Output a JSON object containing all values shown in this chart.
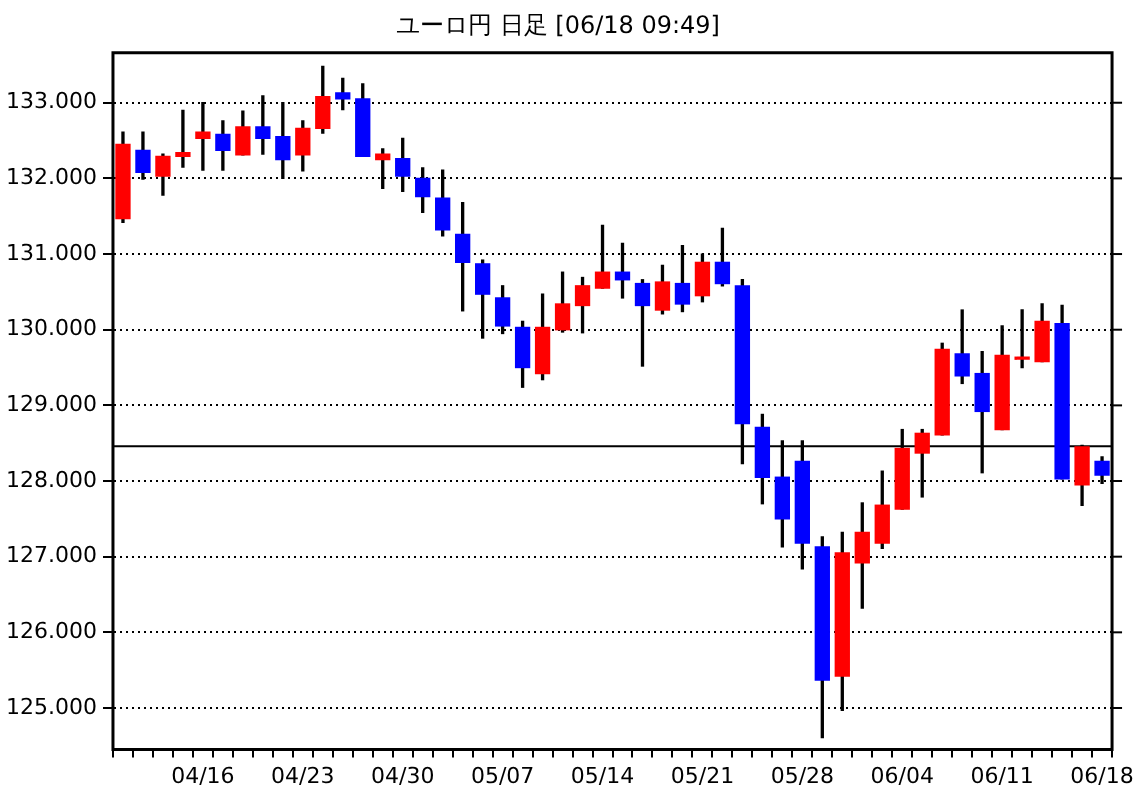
{
  "chart_data": {
    "type": "candlestick",
    "title": "ユーロ円 日足 [06/18 09:49]",
    "categories": [
      null,
      null,
      null,
      null,
      "04/16",
      null,
      null,
      null,
      null,
      "04/23",
      null,
      null,
      null,
      null,
      "04/30",
      null,
      null,
      null,
      null,
      "05/07",
      null,
      null,
      null,
      null,
      "05/14",
      null,
      null,
      null,
      null,
      "05/21",
      null,
      null,
      null,
      null,
      "05/28",
      null,
      null,
      null,
      null,
      "06/04",
      null,
      null,
      null,
      null,
      "06/11",
      null,
      null,
      null,
      null,
      "06/18"
    ],
    "ohlc": [
      [
        131.47,
        132.61,
        131.42,
        132.45
      ],
      [
        132.37,
        132.61,
        131.99,
        132.08
      ],
      [
        132.03,
        132.32,
        131.78,
        132.29
      ],
      [
        132.29,
        132.9,
        132.15,
        132.34
      ],
      [
        132.53,
        133.0,
        132.11,
        132.61
      ],
      [
        132.58,
        132.76,
        132.11,
        132.37
      ],
      [
        132.31,
        132.89,
        132.31,
        132.68
      ],
      [
        132.68,
        133.09,
        132.32,
        132.53
      ],
      [
        132.55,
        133.0,
        132.0,
        132.25
      ],
      [
        132.31,
        132.76,
        132.1,
        132.66
      ],
      [
        132.66,
        133.48,
        132.6,
        133.08
      ],
      [
        133.13,
        133.32,
        132.91,
        133.05
      ],
      [
        133.05,
        133.25,
        132.29,
        132.29
      ],
      [
        132.25,
        132.39,
        131.87,
        132.32
      ],
      [
        132.26,
        132.53,
        131.83,
        132.03
      ],
      [
        132.0,
        132.14,
        131.55,
        131.76
      ],
      [
        131.74,
        132.11,
        131.24,
        131.32
      ],
      [
        131.26,
        131.68,
        130.25,
        130.89
      ],
      [
        130.87,
        130.92,
        129.89,
        130.47
      ],
      [
        130.42,
        130.58,
        129.95,
        130.05
      ],
      [
        130.03,
        130.11,
        129.24,
        129.5
      ],
      [
        129.42,
        130.47,
        129.34,
        130.03
      ],
      [
        130.0,
        130.76,
        129.97,
        130.34
      ],
      [
        130.32,
        130.69,
        129.96,
        130.58
      ],
      [
        130.55,
        131.38,
        130.55,
        130.76
      ],
      [
        130.76,
        131.14,
        130.42,
        130.66
      ],
      [
        130.61,
        130.66,
        129.52,
        130.32
      ],
      [
        130.26,
        130.85,
        130.21,
        130.63
      ],
      [
        130.61,
        131.11,
        130.24,
        130.34
      ],
      [
        130.45,
        131.0,
        130.37,
        130.89
      ],
      [
        130.89,
        131.34,
        130.58,
        130.61
      ],
      [
        130.58,
        130.66,
        128.23,
        128.76
      ],
      [
        128.71,
        128.88,
        127.7,
        128.05
      ],
      [
        128.05,
        128.53,
        127.13,
        127.5
      ],
      [
        128.26,
        128.53,
        126.84,
        127.18
      ],
      [
        127.13,
        127.26,
        124.61,
        125.37
      ],
      [
        125.42,
        127.32,
        124.97,
        127.05
      ],
      [
        126.92,
        127.71,
        126.32,
        127.32
      ],
      [
        127.18,
        128.13,
        127.11,
        127.68
      ],
      [
        127.63,
        128.68,
        127.63,
        128.43
      ],
      [
        128.37,
        128.68,
        127.79,
        128.63
      ],
      [
        128.61,
        129.82,
        128.61,
        129.74
      ],
      [
        129.68,
        130.26,
        129.29,
        129.39
      ],
      [
        129.42,
        129.71,
        128.11,
        128.92
      ],
      [
        128.68,
        130.05,
        128.68,
        129.66
      ],
      [
        129.61,
        130.26,
        129.5,
        129.61
      ],
      [
        129.58,
        130.34,
        129.58,
        130.11
      ],
      [
        130.08,
        130.32,
        128.03,
        128.03
      ],
      [
        127.95,
        128.47,
        127.68,
        128.45
      ],
      [
        128.26,
        128.32,
        127.97,
        128.08
      ]
    ],
    "colors": [
      "#ff0000",
      "#0000ff",
      "#ff0000",
      "#ff0000",
      "#ff0000",
      "#0000ff",
      "#ff0000",
      "#0000ff",
      "#0000ff",
      "#ff0000",
      "#ff0000",
      "#0000ff",
      "#0000ff",
      "#ff0000",
      "#0000ff",
      "#0000ff",
      "#0000ff",
      "#0000ff",
      "#0000ff",
      "#0000ff",
      "#0000ff",
      "#ff0000",
      "#ff0000",
      "#ff0000",
      "#ff0000",
      "#0000ff",
      "#0000ff",
      "#ff0000",
      "#0000ff",
      "#ff0000",
      "#0000ff",
      "#0000ff",
      "#0000ff",
      "#0000ff",
      "#0000ff",
      "#0000ff",
      "#ff0000",
      "#ff0000",
      "#ff0000",
      "#ff0000",
      "#ff0000",
      "#ff0000",
      "#0000ff",
      "#0000ff",
      "#ff0000",
      "#ff0000",
      "#ff0000",
      "#0000ff",
      "#ff0000",
      "#0000ff"
    ],
    "ylim": [
      124.45,
      133.66
    ],
    "yticks": [
      {
        "value": 125,
        "label": "125.000"
      },
      {
        "value": 126,
        "label": "126.000"
      },
      {
        "value": 127,
        "label": "127.000"
      },
      {
        "value": 128,
        "label": "128.000"
      },
      {
        "value": 129,
        "label": "129.000"
      },
      {
        "value": 130,
        "label": "130.000"
      },
      {
        "value": 131,
        "label": "131.000"
      },
      {
        "value": 132,
        "label": "132.000"
      },
      {
        "value": 133,
        "label": "133.000"
      }
    ],
    "grid": "y",
    "legend": false,
    "ref_lines": [
      {
        "axis": "y",
        "value": 128.46,
        "color": "#000000"
      }
    ]
  }
}
